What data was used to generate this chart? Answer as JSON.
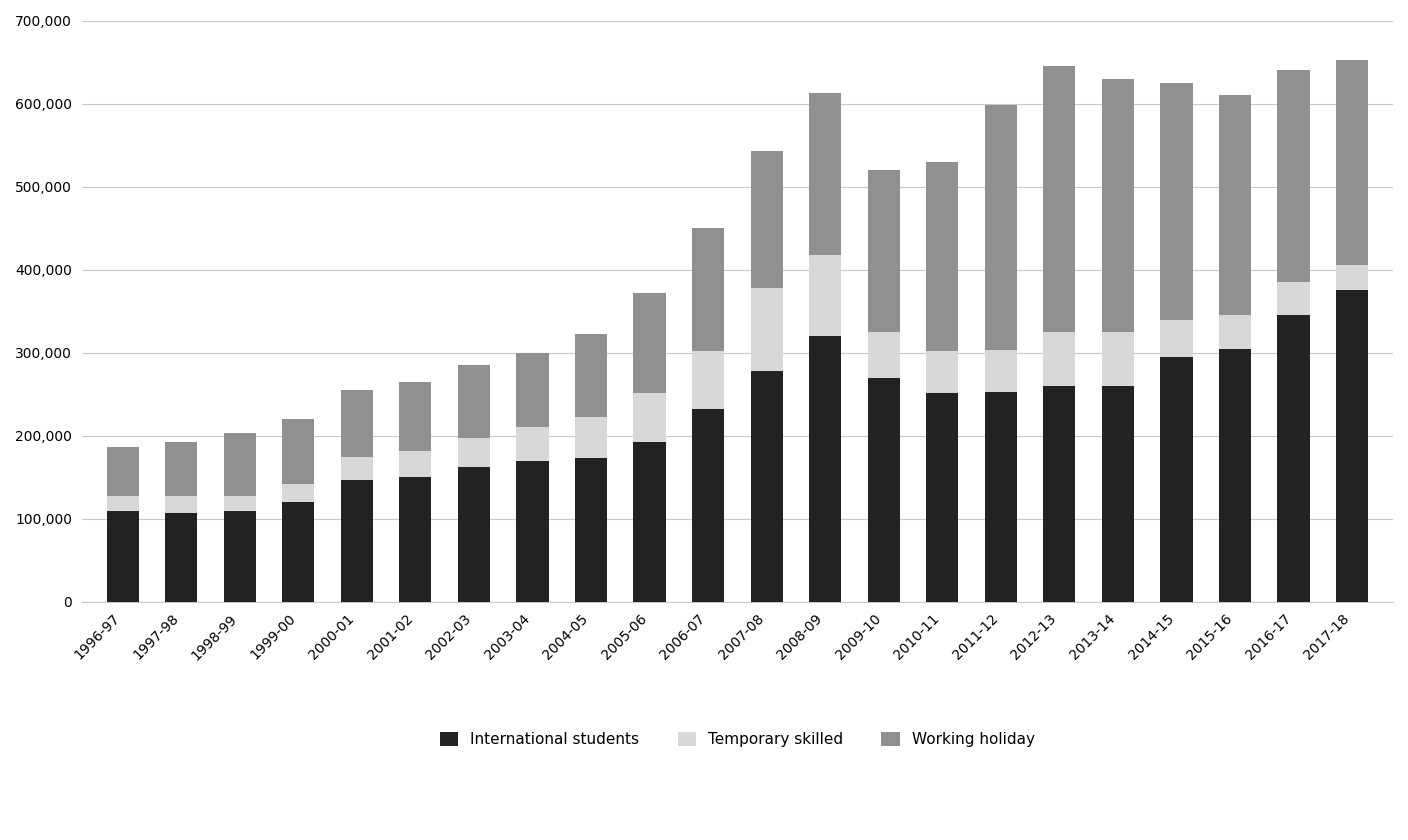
{
  "years": [
    "1996-97",
    "1997-98",
    "1998-99",
    "1999-00",
    "2000-01",
    "2001-02",
    "2002-03",
    "2003-04",
    "2004-05",
    "2005-06",
    "2006-07",
    "2007-08",
    "2008-09",
    "2009-10",
    "2010-11",
    "2011-12",
    "2012-13",
    "2013-14",
    "2014-15",
    "2015-16",
    "2016-17",
    "2017-18"
  ],
  "international_students": [
    110000,
    107000,
    110000,
    120000,
    147000,
    150000,
    162000,
    170000,
    173000,
    192000,
    232000,
    278000,
    320000,
    270000,
    252000,
    253000,
    260000,
    260000,
    295000,
    305000,
    345000,
    376000
  ],
  "temporary_skilled": [
    18000,
    20000,
    18000,
    22000,
    28000,
    32000,
    35000,
    40000,
    50000,
    60000,
    70000,
    100000,
    98000,
    55000,
    50000,
    50000,
    65000,
    65000,
    45000,
    40000,
    40000,
    30000
  ],
  "working_holiday": [
    58000,
    65000,
    75000,
    78000,
    80000,
    83000,
    88000,
    90000,
    100000,
    120000,
    148000,
    165000,
    195000,
    195000,
    228000,
    295000,
    320000,
    305000,
    285000,
    265000,
    255000,
    247000
  ],
  "colors": {
    "international_students": "#222222",
    "temporary_skilled": "#d8d8d8",
    "working_holiday": "#909090"
  },
  "legend_labels": [
    "International students",
    "Temporary skilled",
    "Working holiday"
  ],
  "ylim": [
    0,
    700000
  ],
  "yticks": [
    0,
    100000,
    200000,
    300000,
    400000,
    500000,
    600000,
    700000
  ],
  "background_color": "#ffffff",
  "grid_color": "#c8c8c8",
  "bar_width": 0.55
}
